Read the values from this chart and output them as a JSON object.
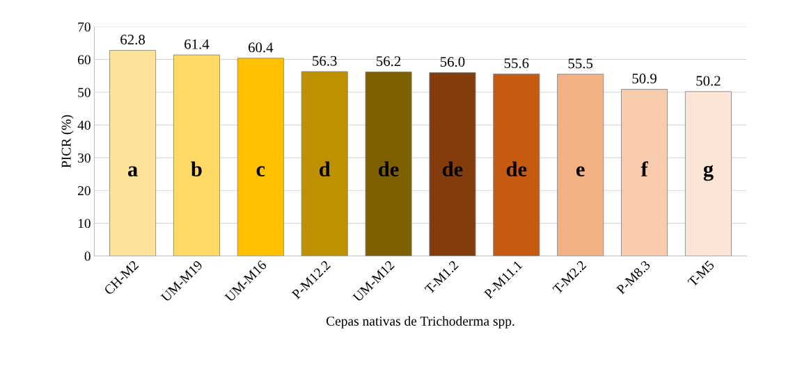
{
  "chart_data": {
    "type": "bar",
    "ylabel": "PICR (%)",
    "xlabel": "Cepas nativas de Trichoderma spp.",
    "categories": [
      "CH-M2",
      "UM-M19",
      "UM-M16",
      "P-M12.2",
      "UM-M12",
      "T-M1.2",
      "P-M11.1",
      "T-M2.2",
      "P-M8.3",
      "T-M5"
    ],
    "values": [
      62.8,
      61.4,
      60.4,
      56.3,
      56.2,
      56.0,
      55.6,
      55.5,
      50.9,
      50.2
    ],
    "value_labels": [
      "62.8",
      "61.4",
      "60.4",
      "56.3",
      "56.2",
      "56.0",
      "55.6",
      "55.5",
      "50.9",
      "50.2"
    ],
    "colors": [
      "#fde29a",
      "#ffd966",
      "#ffc000",
      "#bf9000",
      "#7f6000",
      "#843c0c",
      "#c55a11",
      "#f4b183",
      "#f8cbad",
      "#fbe5d6"
    ],
    "ylim": [
      0,
      70
    ],
    "yticks": [
      0,
      10,
      20,
      30,
      40,
      50,
      60,
      70
    ],
    "grid": "y",
    "legend": false,
    "annotations": [
      "a",
      "b",
      "c",
      "d",
      "de",
      "de",
      "de",
      "e",
      "f",
      "g"
    ]
  }
}
